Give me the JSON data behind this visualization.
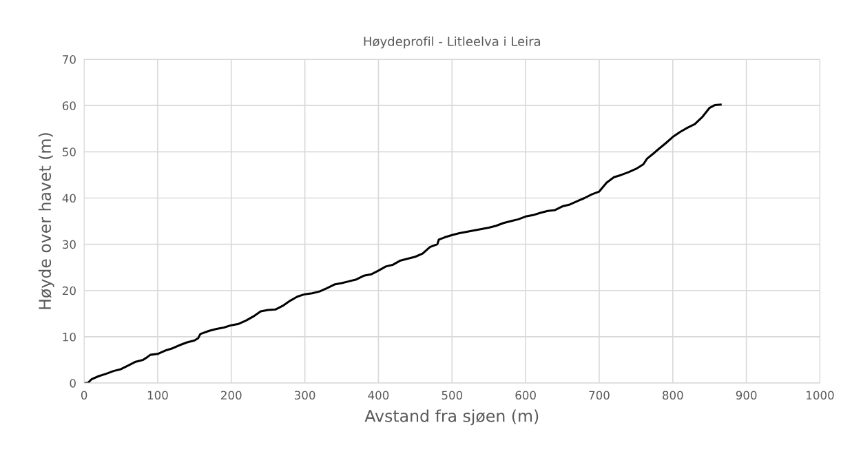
{
  "chart_data": {
    "type": "line",
    "title": "Høydeprofil - Litleelva i Leira",
    "xlabel": "Avstand fra sjøen (m)",
    "ylabel": "Høyde over havet (m)",
    "x": [
      0,
      5,
      10,
      20,
      30,
      40,
      50,
      60,
      70,
      80,
      85,
      90,
      100,
      110,
      120,
      130,
      140,
      150,
      155,
      158,
      170,
      180,
      190,
      200,
      210,
      220,
      230,
      240,
      250,
      260,
      270,
      280,
      290,
      300,
      310,
      320,
      330,
      340,
      350,
      360,
      370,
      380,
      390,
      400,
      410,
      420,
      430,
      440,
      450,
      460,
      470,
      480,
      482,
      490,
      500,
      510,
      520,
      530,
      540,
      550,
      560,
      570,
      580,
      590,
      600,
      610,
      620,
      630,
      640,
      650,
      660,
      670,
      680,
      690,
      700,
      710,
      720,
      730,
      740,
      750,
      760,
      765,
      775,
      780,
      790,
      800,
      810,
      820,
      830,
      840,
      850,
      857,
      865
    ],
    "series": [
      {
        "color": "#000000",
        "values": [
          0,
          0,
          0.8,
          1.5,
          2,
          2.6,
          3,
          3.8,
          4.6,
          5,
          5.5,
          6.1,
          6.3,
          7,
          7.5,
          8.2,
          8.8,
          9.2,
          9.7,
          10.6,
          11.3,
          11.7,
          12,
          12.5,
          12.8,
          13.5,
          14.4,
          15.5,
          15.8,
          15.9,
          16.7,
          17.8,
          18.7,
          19.2,
          19.4,
          19.8,
          20.5,
          21.3,
          21.6,
          22,
          22.4,
          23.2,
          23.5,
          24.3,
          25.2,
          25.6,
          26.5,
          26.9,
          27.3,
          28,
          29.4,
          30,
          31,
          31.5,
          32,
          32.4,
          32.7,
          33,
          33.3,
          33.6,
          34,
          34.6,
          35,
          35.4,
          36,
          36.3,
          36.8,
          37.2,
          37.4,
          38.2,
          38.6,
          39.3,
          40,
          40.8,
          41.4,
          43.3,
          44.5,
          45,
          45.6,
          46.3,
          47.3,
          48.5,
          49.8,
          50.5,
          51.8,
          53.2,
          54.3,
          55.2,
          56,
          57.5,
          59.5,
          60.1,
          60.2
        ]
      }
    ],
    "xlim": [
      0,
      1000
    ],
    "xticks": [
      0,
      100,
      200,
      300,
      400,
      500,
      600,
      700,
      800,
      900,
      1000
    ],
    "ylim": [
      0,
      70
    ],
    "yticks": [
      0,
      10,
      20,
      30,
      40,
      50,
      60,
      70
    ],
    "grid": true,
    "legend": false,
    "marker": "none",
    "line_style": "solid"
  }
}
